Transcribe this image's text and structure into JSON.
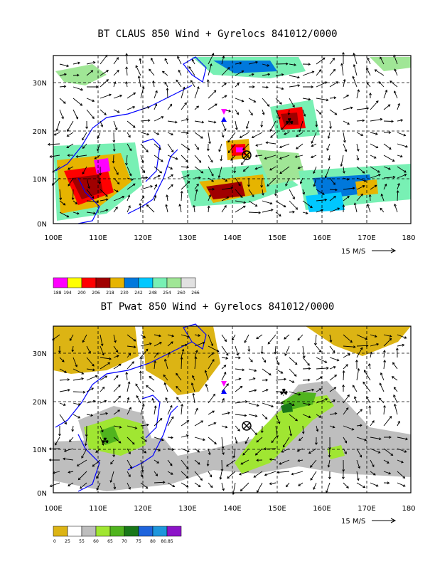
{
  "panel_top": {
    "title": "BT CLAUS 850 Wind + Gyrelocs 841012/0000",
    "lat_labels": [
      "30N",
      "20N",
      "10N",
      "0N"
    ],
    "lon_labels": [
      "100E",
      "110E",
      "120E",
      "130E",
      "140E",
      "150E",
      "160E",
      "170E",
      "180"
    ],
    "ref_vector_label": "15 M/S",
    "colorbar": {
      "colors": [
        "#ff00ff",
        "#ffff00",
        "#ff0000",
        "#a00000",
        "#e6b400",
        "#0078dc",
        "#00c8ff",
        "#78f0b4",
        "#a0e696",
        "#e1e1e1"
      ],
      "labels": [
        "188",
        "194",
        "200",
        "206",
        "218",
        "230",
        "242",
        "248",
        "254",
        "260",
        "266"
      ]
    }
  },
  "panel_bottom": {
    "title": "BT Pwat 850 Wind + Gyrelocs 841012/0000",
    "lat_labels": [
      "30N",
      "20N",
      "10N",
      "0N"
    ],
    "lon_labels": [
      "100E",
      "110E",
      "120E",
      "130E",
      "140E",
      "150E",
      "160E",
      "170E",
      "180"
    ],
    "ref_vector_label": "15 M/S",
    "colorbar": {
      "colors": [
        "#dcb414",
        "#ffffff",
        "#bebebe",
        "#a0e632",
        "#50b41e",
        "#197819",
        "#1e64dc",
        "#1e96dc",
        "#8c14c8"
      ],
      "labels": [
        "0",
        "25",
        "55",
        "60",
        "65",
        "70",
        "75",
        "80",
        "80.85"
      ]
    }
  }
}
